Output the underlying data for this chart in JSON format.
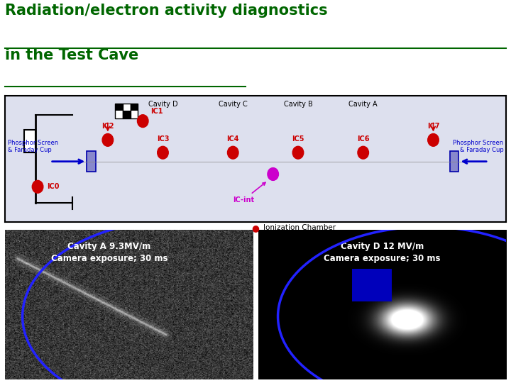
{
  "title_line1": "Radiation/electron activity diagnostics",
  "title_line2": "in the Test Cave",
  "title_color": "#006600",
  "title_fontsize": 15,
  "bg_color": "#ffffff",
  "diagram_bg": "#dde0ee",
  "diagram_border": "#000000",
  "ic_color": "#cc0000",
  "ic_int_color": "#cc00cc",
  "blue_text_color": "#0000cc",
  "ionization_label": "Ionization Chamber",
  "camera_left_label": "Cavity A 9.3MV/m\nCamera exposure; 30 ms",
  "camera_right_label": "Cavity D 12 MV/m\nCamera exposure; 30 ms"
}
